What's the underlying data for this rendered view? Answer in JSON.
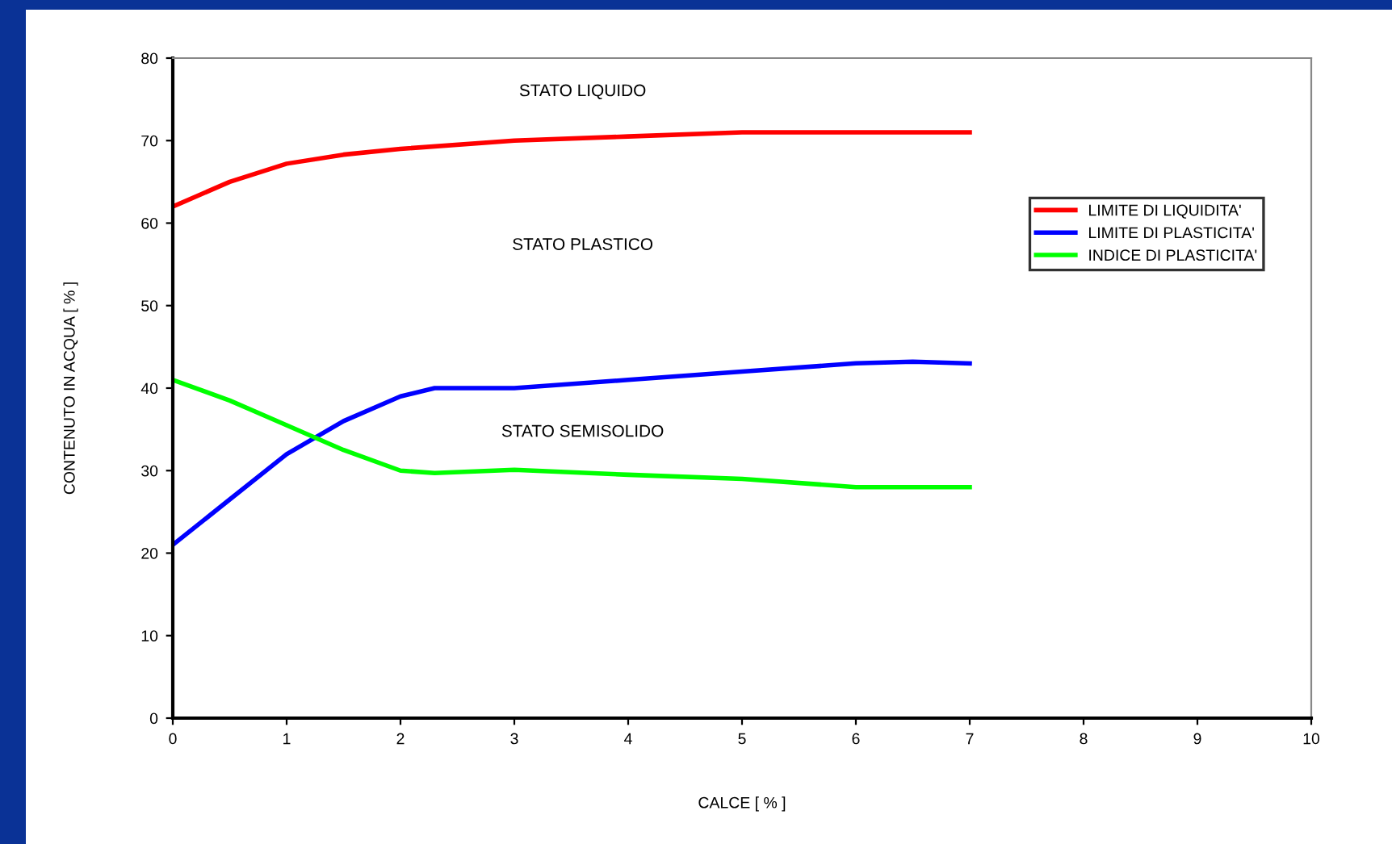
{
  "chart_data": {
    "type": "line",
    "xlabel": "CALCE [ % ]",
    "ylabel": "CONTENUTO IN ACQUA [ % ]",
    "xlim": [
      0,
      10
    ],
    "xticks": [
      0,
      1,
      2,
      3,
      4,
      5,
      6,
      7,
      8,
      9,
      10
    ],
    "ylim": [
      0,
      80
    ],
    "yticks": [
      0,
      10,
      20,
      30,
      40,
      50,
      60,
      70,
      80
    ],
    "grid": false,
    "legend": "upper right",
    "marker": "none",
    "line_style": "solid",
    "series": [
      {
        "name": "LIMITE DI LIQUIDITA'",
        "color": "#ff0000",
        "x": [
          0,
          0.5,
          1,
          1.5,
          2,
          3,
          4,
          5,
          6,
          7
        ],
        "values": [
          62,
          65,
          67.2,
          68.3,
          69,
          70,
          70.5,
          71,
          71,
          71
        ]
      },
      {
        "name": "LIMITE DI PLASTICITA'",
        "color": "#0000ff",
        "x": [
          0,
          0.5,
          1,
          1.5,
          2,
          2.3,
          3,
          4,
          5,
          6,
          6.5,
          7
        ],
        "values": [
          21,
          26.5,
          32,
          36,
          39,
          40,
          40,
          41,
          42,
          43,
          43.2,
          43
        ]
      },
      {
        "name": "INDICE DI PLASTICITA'",
        "color": "#00ff00",
        "x": [
          0,
          0.5,
          1,
          1.5,
          2,
          2.3,
          3,
          4,
          5,
          6,
          7
        ],
        "values": [
          41,
          38.5,
          35.5,
          32.5,
          30,
          29.7,
          30.1,
          29.5,
          29,
          28,
          28
        ]
      }
    ],
    "annotations": [
      "STATO LIQUIDO",
      "STATO PLASTICO",
      "STATO SEMISOLIDO"
    ]
  }
}
